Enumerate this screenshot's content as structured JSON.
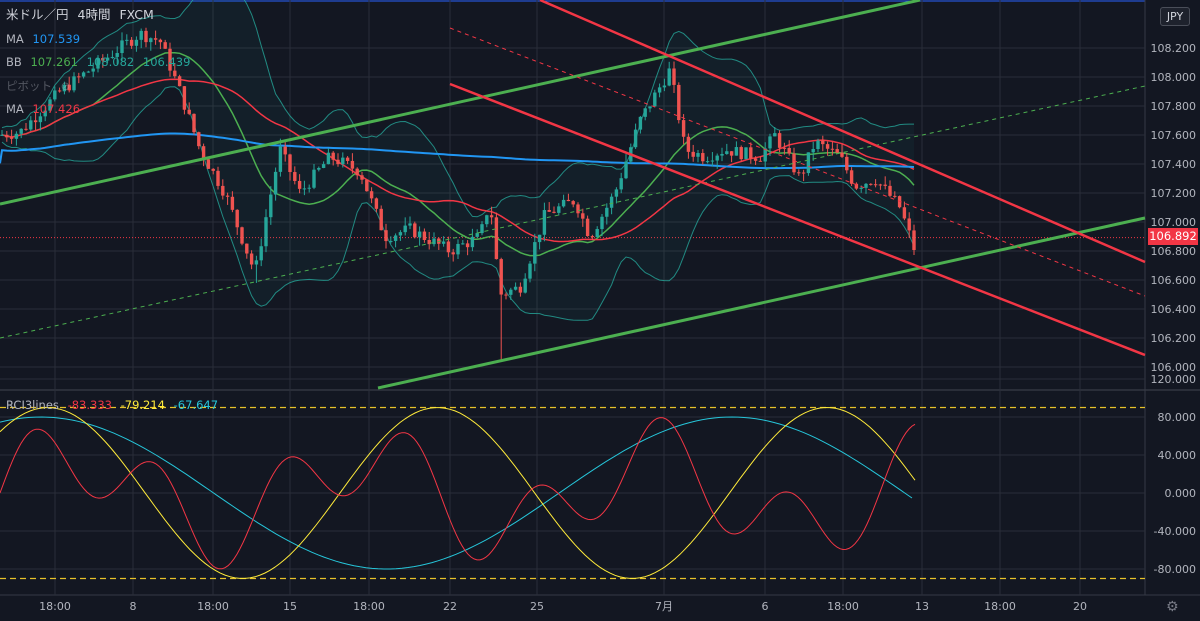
{
  "header": {
    "symbol": "米ドル／円",
    "interval": "4時間",
    "source": "FXCM",
    "currency_badge": "JPY"
  },
  "indicators": {
    "ma1": {
      "label": "MA",
      "value": "107.539",
      "color": "#2196f3"
    },
    "bb": {
      "label": "BB",
      "values": [
        "107.261",
        "108.082",
        "106.439"
      ],
      "colors": [
        "#4caf50",
        "#4caf50",
        "#26a69a"
      ]
    },
    "pivot": {
      "label": "ピボット"
    },
    "ma2": {
      "label": "MA",
      "value": "107.426",
      "color": "#f23645"
    }
  },
  "current_price": "106.892",
  "colors": {
    "up_candle": "#26a69a",
    "down_candle": "#ef5350",
    "channel_green": "#4caf50",
    "channel_red": "#f23645",
    "background": "#131722",
    "grid": "#2a2e39"
  },
  "chart_data": [
    {
      "type": "candlestick",
      "title": "米ドル／円 4時間 FXCM",
      "y_ticks": [
        "108.200",
        "108.000",
        "107.800",
        "107.600",
        "107.400",
        "107.200",
        "107.000",
        "106.800",
        "106.600",
        "106.400",
        "106.200",
        "106.000"
      ],
      "ylim": [
        105.88,
        108.35
      ],
      "x_ticks": [
        "18:00",
        "8",
        "18:00",
        "15",
        "18:00",
        "22",
        "25",
        "7月",
        "6",
        "18:00",
        "13",
        "18:00",
        "20"
      ],
      "last_price": 106.892,
      "grid": true,
      "series": [
        {
          "name": "MA",
          "last": 107.539
        },
        {
          "name": "BB",
          "last": [
            107.261,
            108.082,
            106.439
          ]
        },
        {
          "name": "MA",
          "last": 107.426
        }
      ],
      "lines": [
        "green ascending channel",
        "red descending channel",
        "dashed midlines"
      ]
    },
    {
      "type": "line",
      "title": "RCI3lines",
      "series": [
        {
          "name": "RCI short",
          "last": -83.333,
          "color": "#f23645"
        },
        {
          "name": "RCI mid",
          "last": -79.214,
          "color": "#ffeb3b"
        },
        {
          "name": "RCI long",
          "last": -67.647,
          "color": "#26c6da"
        }
      ],
      "y_ticks": [
        "120.000",
        "80.000",
        "40.000",
        "0.000",
        "-40.000",
        "-80.000"
      ],
      "ylim": [
        -100,
        120
      ],
      "levels": [
        90,
        -90
      ]
    }
  ],
  "rci": {
    "label": "RCI3lines",
    "values": [
      "-83.333",
      "-79.214",
      "-67.647"
    ]
  }
}
